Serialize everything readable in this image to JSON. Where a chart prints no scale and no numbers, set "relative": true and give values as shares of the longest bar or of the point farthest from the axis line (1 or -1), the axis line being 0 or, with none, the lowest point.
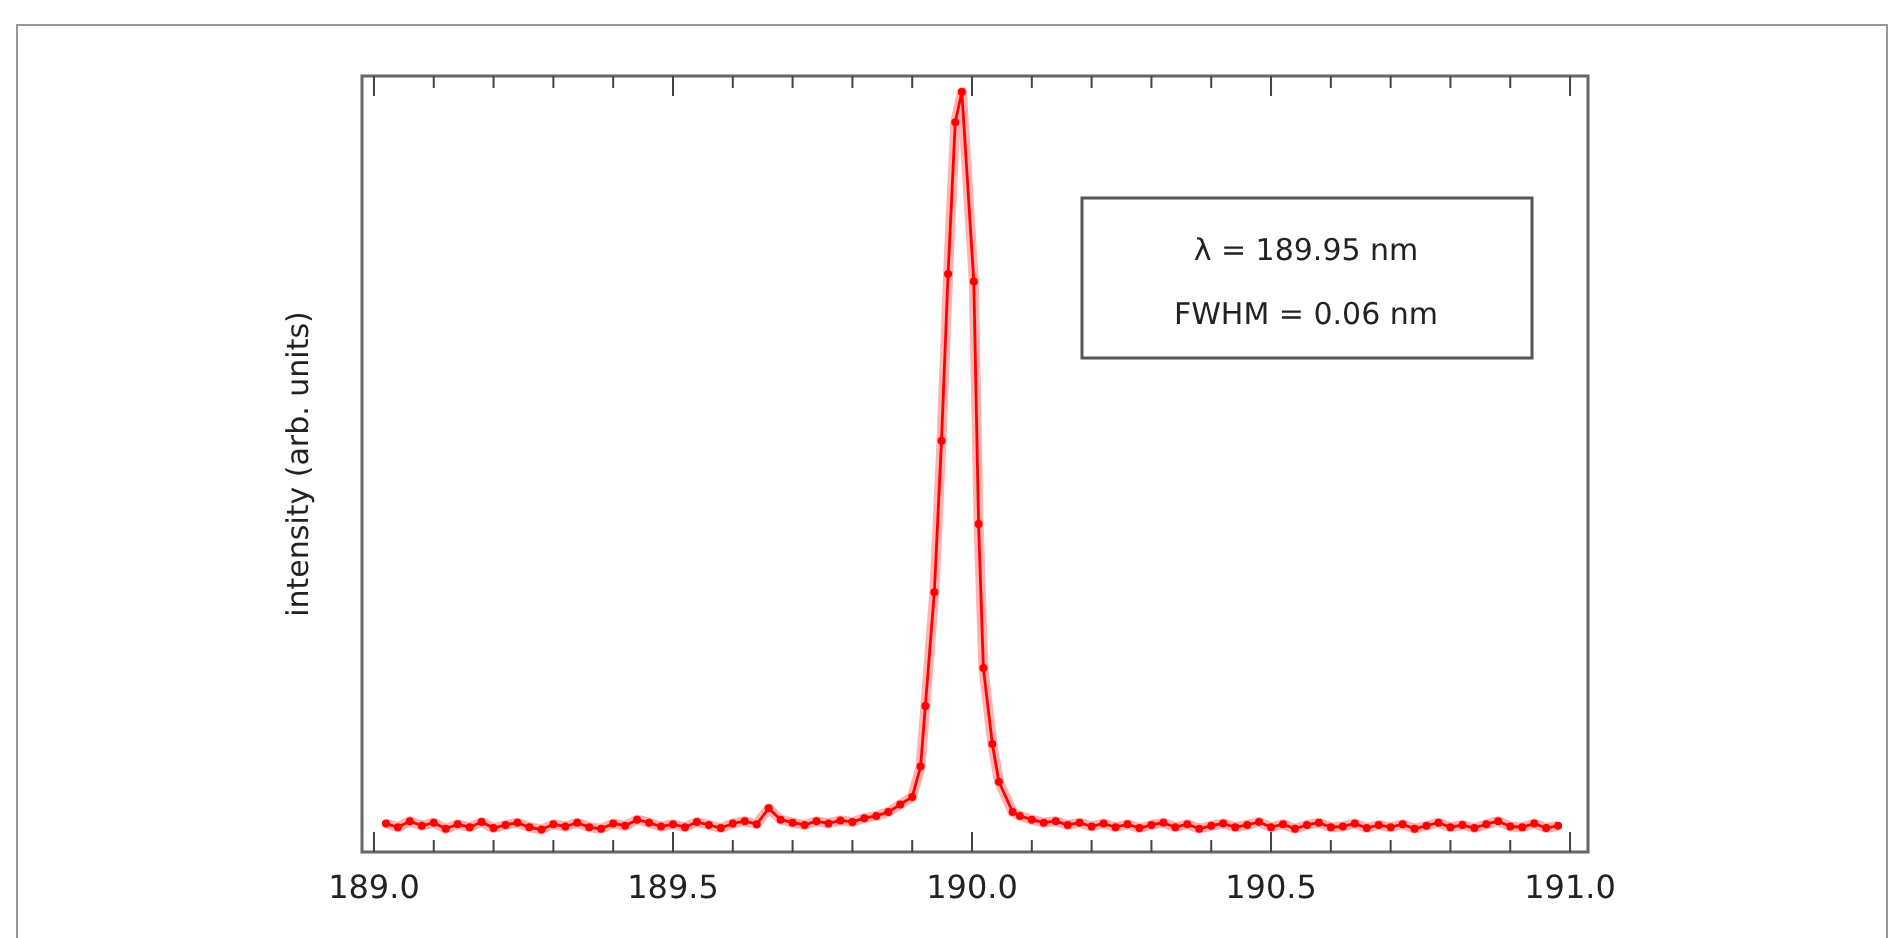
{
  "chart_data": {
    "type": "line",
    "ylabel": "intensity (arb. units)",
    "relative": true,
    "tick_labels": "x",
    "annotations": [
      "λ = 189.95 nm",
      "FWHM = 0.06 nm"
    ],
    "xlim": [
      188.98,
      191.03
    ],
    "xticks": [
      {
        "value": 189.0,
        "label": "189.0"
      },
      {
        "value": 189.1,
        "label": null
      },
      {
        "value": 189.2,
        "label": null
      },
      {
        "value": 189.3,
        "label": null
      },
      {
        "value": 189.4,
        "label": null
      },
      {
        "value": 189.5,
        "label": "189.5"
      },
      {
        "value": 189.6,
        "label": null
      },
      {
        "value": 189.7,
        "label": null
      },
      {
        "value": 189.8,
        "label": null
      },
      {
        "value": 189.9,
        "label": null
      },
      {
        "value": 190.0,
        "label": "190.0"
      },
      {
        "value": 190.1,
        "label": null
      },
      {
        "value": 190.2,
        "label": null
      },
      {
        "value": 190.3,
        "label": null
      },
      {
        "value": 190.4,
        "label": null
      },
      {
        "value": 190.5,
        "label": "190.5"
      },
      {
        "value": 190.6,
        "label": null
      },
      {
        "value": 190.7,
        "label": null
      },
      {
        "value": 190.8,
        "label": null
      },
      {
        "value": 190.9,
        "label": null
      },
      {
        "value": 191.0,
        "label": "191.0"
      }
    ],
    "marker": "circle",
    "line_style": "solid",
    "series": [
      {
        "color": "#ff0000",
        "x": [
          189.02,
          189.04,
          189.06,
          189.08,
          189.1,
          189.12,
          189.14,
          189.16,
          189.18,
          189.2,
          189.22,
          189.24,
          189.26,
          189.28,
          189.3,
          189.32,
          189.34,
          189.36,
          189.38,
          189.4,
          189.42,
          189.44,
          189.46,
          189.48,
          189.5,
          189.52,
          189.54,
          189.56,
          189.58,
          189.6,
          189.62,
          189.64,
          189.66,
          189.68,
          189.7,
          189.72,
          189.74,
          189.76,
          189.78,
          189.8,
          189.82,
          189.84,
          189.86,
          189.88,
          189.9,
          189.914,
          189.922,
          189.937,
          189.949,
          189.96,
          189.972,
          189.983,
          190.003,
          190.011,
          190.019,
          190.034,
          190.045,
          190.068,
          190.08,
          190.1,
          190.12,
          190.14,
          190.16,
          190.18,
          190.2,
          190.22,
          190.24,
          190.26,
          190.28,
          190.3,
          190.32,
          190.34,
          190.36,
          190.38,
          190.4,
          190.42,
          190.44,
          190.46,
          190.48,
          190.5,
          190.52,
          190.54,
          190.56,
          190.58,
          190.6,
          190.62,
          190.64,
          190.66,
          190.68,
          190.7,
          190.72,
          190.74,
          190.76,
          190.78,
          190.8,
          190.82,
          190.84,
          190.86,
          190.88,
          190.9,
          190.92,
          190.94,
          190.96,
          190.98
        ],
        "values": [
          0.035,
          0.03,
          0.038,
          0.032,
          0.036,
          0.028,
          0.034,
          0.03,
          0.037,
          0.029,
          0.033,
          0.036,
          0.03,
          0.027,
          0.034,
          0.031,
          0.036,
          0.03,
          0.028,
          0.035,
          0.032,
          0.04,
          0.036,
          0.031,
          0.034,
          0.03,
          0.037,
          0.033,
          0.029,
          0.035,
          0.038,
          0.034,
          0.055,
          0.04,
          0.036,
          0.033,
          0.038,
          0.035,
          0.039,
          0.037,
          0.042,
          0.045,
          0.05,
          0.06,
          0.07,
          0.11,
          0.19,
          0.34,
          0.54,
          0.76,
          0.96,
          1.0,
          0.75,
          0.43,
          0.24,
          0.14,
          0.09,
          0.05,
          0.045,
          0.04,
          0.036,
          0.038,
          0.033,
          0.036,
          0.031,
          0.035,
          0.03,
          0.034,
          0.029,
          0.033,
          0.036,
          0.03,
          0.034,
          0.028,
          0.032,
          0.035,
          0.03,
          0.033,
          0.037,
          0.03,
          0.034,
          0.028,
          0.033,
          0.036,
          0.03,
          0.031,
          0.035,
          0.029,
          0.033,
          0.03,
          0.034,
          0.028,
          0.032,
          0.036,
          0.03,
          0.033,
          0.029,
          0.034,
          0.038,
          0.031,
          0.03,
          0.035,
          0.029,
          0.032
        ]
      }
    ]
  }
}
